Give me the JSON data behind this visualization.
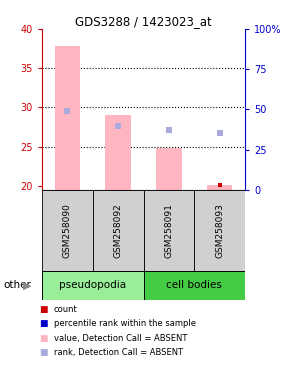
{
  "title": "GDS3288 / 1423023_at",
  "samples": [
    "GSM258090",
    "GSM258092",
    "GSM258091",
    "GSM258093"
  ],
  "group_colors": {
    "pseudopodia": "#99EE99",
    "cell bodies": "#44CC44"
  },
  "ylim_left": [
    19.5,
    40
  ],
  "ylim_right": [
    0,
    100
  ],
  "yticks_left": [
    20,
    25,
    30,
    35,
    40
  ],
  "yticks_right": [
    0,
    25,
    50,
    75,
    100
  ],
  "bar_values": [
    37.8,
    29.0,
    24.9,
    20.1
  ],
  "bar_color": "#FFB6C1",
  "bar_bottom": 19.5,
  "bar_width": 0.5,
  "scatter_rank": [
    29.5,
    27.7,
    27.2,
    26.7
  ],
  "scatter_rank_color": "#AAAADD",
  "count_values": [
    null,
    null,
    null,
    20.1
  ],
  "count_color": "#CC0000",
  "left_axis_color": "#CC0000",
  "right_axis_color": "#0000CC",
  "gridline_y": [
    25,
    30,
    35
  ],
  "groups_info": [
    {
      "label": "pseudopodia",
      "cols": [
        0,
        1
      ],
      "color": "#99EE99"
    },
    {
      "label": "cell bodies",
      "cols": [
        2,
        3
      ],
      "color": "#44CC44"
    }
  ],
  "legend_items": [
    {
      "label": "count",
      "color": "#CC0000"
    },
    {
      "label": "percentile rank within the sample",
      "color": "#0000CC"
    },
    {
      "label": "value, Detection Call = ABSENT",
      "color": "#FFB6C1"
    },
    {
      "label": "rank, Detection Call = ABSENT",
      "color": "#AAAADD"
    }
  ]
}
